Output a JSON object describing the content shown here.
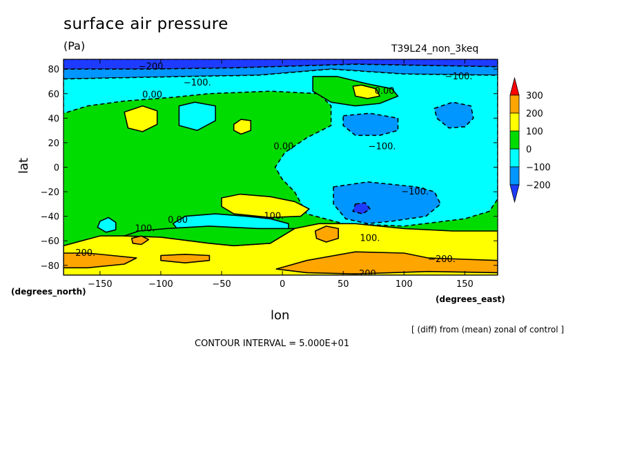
{
  "chart_data": {
    "type": "heatmap",
    "title": "surface air pressure",
    "units": "(Pa)",
    "run_label": "T39L24_non_3keq",
    "xlabel": "lon",
    "ylabel": "lat",
    "xlabel_units": "(degrees_east)",
    "ylabel_units": "(degrees_north)",
    "xlim": [
      -180,
      177
    ],
    "ylim": [
      -88,
      88
    ],
    "xticks": [
      -150,
      -100,
      -50,
      0,
      50,
      100,
      150
    ],
    "yticks": [
      80,
      60,
      40,
      20,
      0,
      -20,
      -40,
      -60,
      -80
    ],
    "xtick_labels": [
      "−150",
      "−100",
      "−50",
      "0",
      "50",
      "100",
      "150"
    ],
    "ytick_labels": [
      "80",
      "60",
      "40",
      "20",
      "0",
      "−20",
      "−40",
      "−60",
      "−80"
    ],
    "contour_interval": 50,
    "colorbar": {
      "labels": [
        "300",
        "200",
        "100",
        "0",
        "−100",
        "−200"
      ],
      "bins": [
        {
          "range": [
            200,
            300
          ],
          "color": "#ffa500"
        },
        {
          "range": [
            100,
            200
          ],
          "color": "#ffff00"
        },
        {
          "range": [
            0,
            100
          ],
          "color": "#00dc00"
        },
        {
          "range": [
            -100,
            0
          ],
          "color": "#00ffff"
        },
        {
          "range": [
            -200,
            -100
          ],
          "color": "#0096ff"
        }
      ],
      "upper_arrow_color": "#ff0000",
      "lower_arrow_color": "#1e3cff"
    },
    "background_color": "#00dc00",
    "regions": [
      {
        "level": -200,
        "color": "#1e3cff",
        "points": [
          [
            -180,
            88
          ],
          [
            177,
            88
          ],
          [
            177,
            82
          ],
          [
            60,
            84
          ],
          [
            -40,
            81
          ],
          [
            -110,
            80
          ],
          [
            -180,
            80
          ]
        ]
      },
      {
        "level": -100,
        "color": "#0096ff",
        "points": [
          [
            -180,
            80
          ],
          [
            -110,
            80
          ],
          [
            -40,
            81
          ],
          [
            60,
            84
          ],
          [
            177,
            82
          ],
          [
            177,
            75
          ],
          [
            100,
            76
          ],
          [
            40,
            80
          ],
          [
            -20,
            75
          ],
          [
            -80,
            74
          ],
          [
            -180,
            72
          ]
        ]
      },
      {
        "level": -100,
        "color": "#00ffff",
        "points": [
          [
            -180,
            72
          ],
          [
            -80,
            74
          ],
          [
            -20,
            75
          ],
          [
            40,
            80
          ],
          [
            100,
            76
          ],
          [
            177,
            75
          ],
          [
            177,
            -26
          ],
          [
            170,
            -36
          ],
          [
            150,
            -42
          ],
          [
            100,
            -48
          ],
          [
            50,
            -46
          ],
          [
            20,
            -38
          ],
          [
            10,
            -20
          ],
          [
            0,
            -10
          ],
          [
            -6,
            0
          ],
          [
            2,
            12
          ],
          [
            20,
            24
          ],
          [
            40,
            34
          ],
          [
            40,
            50
          ],
          [
            30,
            60
          ],
          [
            -10,
            62
          ],
          [
            -60,
            60
          ],
          [
            -90,
            57
          ],
          [
            -130,
            54
          ],
          [
            -160,
            50
          ],
          [
            -180,
            44
          ]
        ]
      },
      {
        "level": 0,
        "color": "#00dc00",
        "points": [
          [
            25,
            74
          ],
          [
            45,
            74
          ],
          [
            70,
            68
          ],
          [
            90,
            64
          ],
          [
            95,
            58
          ],
          [
            80,
            52
          ],
          [
            60,
            50
          ],
          [
            40,
            53
          ],
          [
            25,
            62
          ]
        ]
      },
      {
        "level": 100,
        "color": "#ffff00",
        "points": [
          [
            58,
            66
          ],
          [
            65,
            67
          ],
          [
            77,
            64
          ],
          [
            80,
            58
          ],
          [
            70,
            56
          ],
          [
            60,
            58
          ]
        ]
      },
      {
        "level": 0,
        "color": "#00ffff",
        "points": [
          [
            -85,
            50
          ],
          [
            -72,
            53
          ],
          [
            -55,
            50
          ],
          [
            -55,
            38
          ],
          [
            -70,
            30
          ],
          [
            -85,
            34
          ]
        ]
      },
      {
        "level": -100,
        "color": "#0096ff",
        "points": [
          [
            50,
            42
          ],
          [
            72,
            44
          ],
          [
            95,
            40
          ],
          [
            95,
            30
          ],
          [
            80,
            26
          ],
          [
            60,
            26
          ],
          [
            50,
            34
          ]
        ]
      },
      {
        "level": -100,
        "color": "#0096ff",
        "points": [
          [
            125,
            48
          ],
          [
            140,
            53
          ],
          [
            155,
            50
          ],
          [
            157,
            40
          ],
          [
            150,
            33
          ],
          [
            137,
            32
          ],
          [
            127,
            40
          ]
        ]
      },
      {
        "level": -100,
        "color": "#0096ff",
        "points": [
          [
            42,
            -16
          ],
          [
            70,
            -12
          ],
          [
            110,
            -16
          ],
          [
            125,
            -20
          ],
          [
            130,
            -30
          ],
          [
            118,
            -40
          ],
          [
            90,
            -44
          ],
          [
            70,
            -46
          ],
          [
            52,
            -42
          ],
          [
            42,
            -30
          ]
        ]
      },
      {
        "level": -200,
        "color": "#1e3cff",
        "points": [
          [
            60,
            -30
          ],
          [
            68,
            -29
          ],
          [
            72,
            -34
          ],
          [
            66,
            -38
          ],
          [
            58,
            -36
          ]
        ]
      },
      {
        "level": 100,
        "color": "#ffff00",
        "points": [
          [
            -130,
            45
          ],
          [
            -115,
            50
          ],
          [
            -103,
            46
          ],
          [
            -103,
            35
          ],
          [
            -115,
            29
          ],
          [
            -127,
            32
          ]
        ]
      },
      {
        "level": 100,
        "color": "#ffff00",
        "points": [
          [
            -40,
            35
          ],
          [
            -34,
            39
          ],
          [
            -26,
            38
          ],
          [
            -26,
            30
          ],
          [
            -34,
            27
          ],
          [
            -40,
            30
          ]
        ]
      },
      {
        "level": 100,
        "color": "#ffff00",
        "points": [
          [
            -50,
            -25
          ],
          [
            -35,
            -22
          ],
          [
            -10,
            -24
          ],
          [
            10,
            -28
          ],
          [
            22,
            -34
          ],
          [
            15,
            -40
          ],
          [
            -10,
            -41
          ],
          [
            -40,
            -38
          ],
          [
            -50,
            -32
          ]
        ]
      },
      {
        "level": 0,
        "color": "#00ffff",
        "points": [
          [
            -80,
            -40
          ],
          [
            -55,
            -38
          ],
          [
            -30,
            -40
          ],
          [
            -10,
            -42
          ],
          [
            5,
            -46
          ],
          [
            5,
            -54
          ],
          [
            -20,
            -60
          ],
          [
            -60,
            -58
          ],
          [
            -85,
            -52
          ],
          [
            -90,
            -46
          ]
        ]
      },
      {
        "level": 0,
        "color": "#00ffff",
        "points": [
          [
            -150,
            -44
          ],
          [
            -143,
            -41
          ],
          [
            -137,
            -45
          ],
          [
            -137,
            -51
          ],
          [
            -145,
            -53
          ],
          [
            -152,
            -49
          ]
        ]
      },
      {
        "level": 100,
        "color": "#ffff00",
        "points": [
          [
            -180,
            -64
          ],
          [
            -150,
            -56
          ],
          [
            -130,
            -56
          ],
          [
            -100,
            -57
          ],
          [
            -60,
            -62
          ],
          [
            -40,
            -64
          ],
          [
            -10,
            -62
          ],
          [
            10,
            -50
          ],
          [
            30,
            -46
          ],
          [
            60,
            -46
          ],
          [
            100,
            -50
          ],
          [
            140,
            -52
          ],
          [
            177,
            -52
          ],
          [
            177,
            -88
          ],
          [
            -180,
            -88
          ]
        ]
      },
      {
        "level": 0,
        "color": "#00dc00",
        "points": [
          [
            -130,
            -56
          ],
          [
            -118,
            -52
          ],
          [
            -95,
            -50
          ],
          [
            -60,
            -48
          ],
          [
            -20,
            -50
          ],
          [
            5,
            -50
          ],
          [
            10,
            -50
          ],
          [
            -10,
            -62
          ],
          [
            -40,
            -64
          ],
          [
            -60,
            -62
          ],
          [
            -100,
            -57
          ]
        ]
      },
      {
        "level": 200,
        "color": "#ffa500",
        "points": [
          [
            -180,
            -70
          ],
          [
            -160,
            -70
          ],
          [
            -140,
            -72
          ],
          [
            -120,
            -74
          ],
          [
            -130,
            -79
          ],
          [
            -160,
            -82
          ],
          [
            -180,
            -82
          ]
        ]
      },
      {
        "level": 200,
        "color": "#ffa500",
        "points": [
          [
            -100,
            -72
          ],
          [
            -80,
            -71
          ],
          [
            -60,
            -72
          ],
          [
            -60,
            -76
          ],
          [
            -80,
            -78
          ],
          [
            -100,
            -76
          ]
        ]
      },
      {
        "level": 200,
        "color": "#ffa500",
        "points": [
          [
            -5,
            -83
          ],
          [
            20,
            -76
          ],
          [
            60,
            -69
          ],
          [
            100,
            -70
          ],
          [
            120,
            -74
          ],
          [
            177,
            -76
          ],
          [
            177,
            -86
          ],
          [
            120,
            -85
          ],
          [
            60,
            -87
          ],
          [
            20,
            -86
          ]
        ]
      },
      {
        "level": 200,
        "color": "#ffa500",
        "points": [
          [
            -124,
            -58
          ],
          [
            -116,
            -56
          ],
          [
            -110,
            -59
          ],
          [
            -116,
            -63
          ],
          [
            -123,
            -62
          ]
        ]
      },
      {
        "level": 200,
        "color": "#ffa500",
        "points": [
          [
            27,
            -52
          ],
          [
            36,
            -48
          ],
          [
            46,
            -50
          ],
          [
            46,
            -58
          ],
          [
            36,
            -61
          ],
          [
            28,
            -58
          ]
        ]
      }
    ],
    "contour_labels": [
      {
        "text": "−200.",
        "lon": -107,
        "lat": 82
      },
      {
        "text": "−100.",
        "lon": -70,
        "lat": 69
      },
      {
        "text": "0.00",
        "lon": -107,
        "lat": 59
      },
      {
        "text": "0.00",
        "lon": 84,
        "lat": 62
      },
      {
        "text": "−100.",
        "lon": 145,
        "lat": 74
      },
      {
        "text": "−100.",
        "lon": 82,
        "lat": 17
      },
      {
        "text": "0.00",
        "lon": 1,
        "lat": 17
      },
      {
        "text": "−100.",
        "lon": 109,
        "lat": -20
      },
      {
        "text": "0.00",
        "lon": -86,
        "lat": -43
      },
      {
        "text": "100.",
        "lon": -113,
        "lat": -50
      },
      {
        "text": "100.",
        "lon": -7,
        "lat": -40
      },
      {
        "text": "100.",
        "lon": 72,
        "lat": -58
      },
      {
        "text": "200.",
        "lon": -162,
        "lat": -70
      },
      {
        "text": "−200.",
        "lon": 131,
        "lat": -75
      },
      {
        "text": "−200.",
        "lon": 68,
        "lat": -87
      }
    ],
    "annotation": "[ (diff) from (mean) zonal of control ]",
    "contour_interval_label": "CONTOUR INTERVAL = 5.000E+01"
  }
}
